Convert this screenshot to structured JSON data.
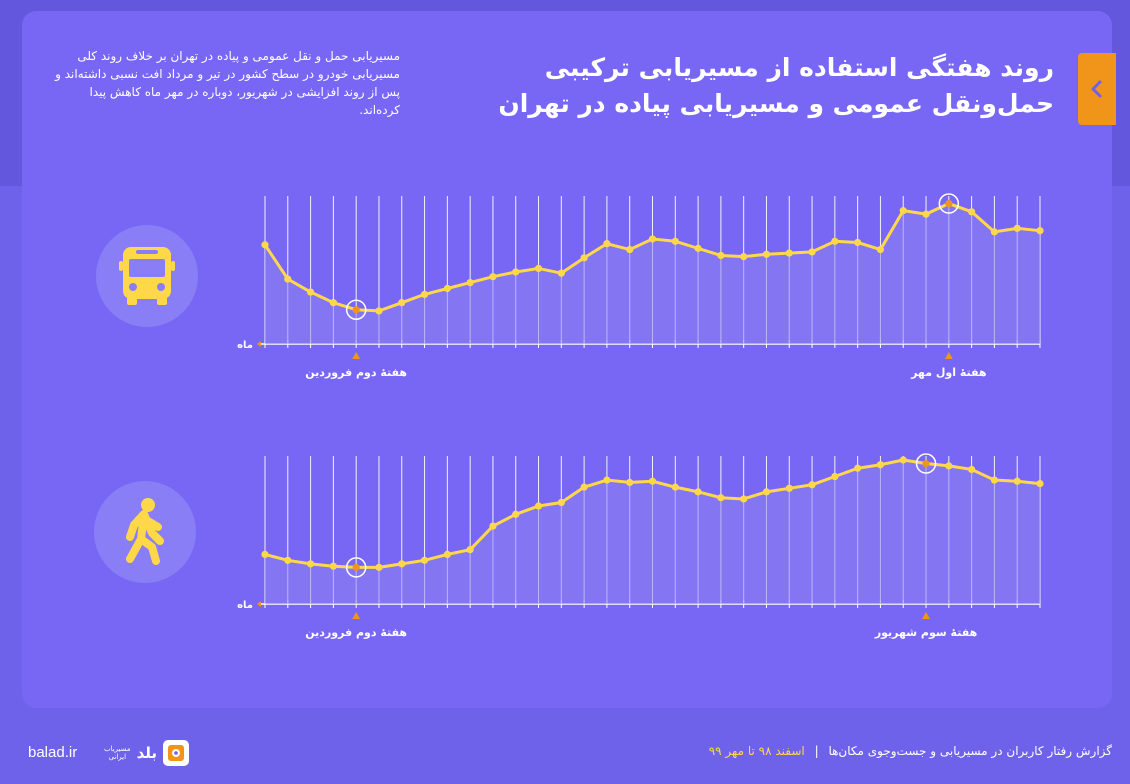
{
  "title": {
    "line1": "روند هفتگی استفاده از مسیریابی ترکیبی",
    "line2": "حمل‌ونقل عمومی و مسیریابی پیاده در تهران"
  },
  "description": "مسیریابی حمل و نقل عمومی و پیاده در تهران بر خلاف روند کلی مسیریابی خودرو در سطح کشور در تیر و مرداد افت نسبی داشته‌اند و پس از روند افزایشی در شهریور، دوباره در مهر ماه کاهش پیدا کرده‌اند.",
  "footer": {
    "report": "گزارش رفتار کاربران در مسیریابی و جست‌وجوی مکان‌ها",
    "separator": "|",
    "range": "اسفند ۹۸ تا مهر ۹۹",
    "brand_url": "balad.ir",
    "brand_word": "بلد",
    "brand_sub1": "مسیریاب",
    "brand_sub2": "ایرانی"
  },
  "icons": {
    "bus": "bus-icon",
    "walk": "pedestrian-icon",
    "back": "chevron-left-icon"
  },
  "colors": {
    "line": "#ffd84a",
    "highlight": "#f0941a",
    "grid": "#ffffff",
    "area": "#8f84f2"
  },
  "chart_data": [
    {
      "type": "area",
      "title": "حمل‌ونقل عمومی",
      "xlabel": "ماه",
      "ylabel": "",
      "x": [
        1,
        2,
        3,
        4,
        5,
        6,
        7,
        8,
        9,
        10,
        11,
        12,
        13,
        14,
        15,
        16,
        17,
        18,
        19,
        20,
        21,
        22,
        23,
        24,
        25,
        26,
        27,
        28,
        29,
        30,
        31,
        32,
        33,
        34,
        35
      ],
      "values": [
        62,
        33,
        22,
        13,
        7,
        6,
        13,
        20,
        25,
        30,
        35,
        39,
        42,
        38,
        51,
        63,
        58,
        67,
        65,
        59,
        53,
        52,
        54,
        55,
        56,
        65,
        64,
        58,
        91,
        88,
        97,
        90,
        73,
        76,
        74
      ],
      "ylim": [
        0,
        100
      ],
      "highlights": [
        {
          "x": 5,
          "label": "هفتهٔ دوم فروردین"
        },
        {
          "x": 31,
          "label": "هفتهٔ اول مهر"
        }
      ]
    },
    {
      "type": "area",
      "title": "پیاده",
      "xlabel": "ماه",
      "ylabel": "",
      "x": [
        1,
        2,
        3,
        4,
        5,
        6,
        7,
        8,
        9,
        10,
        11,
        12,
        13,
        14,
        15,
        16,
        17,
        18,
        19,
        20,
        21,
        22,
        23,
        24,
        25,
        26,
        27,
        28,
        29,
        30,
        31,
        32,
        33,
        34,
        35
      ],
      "values": [
        20,
        15,
        12,
        10,
        9,
        9,
        12,
        15,
        20,
        24,
        44,
        54,
        61,
        64,
        77,
        83,
        81,
        82,
        77,
        73,
        68,
        67,
        73,
        76,
        79,
        86,
        93,
        96,
        100,
        97,
        95,
        92,
        83,
        82,
        80
      ],
      "ylim": [
        0,
        100
      ],
      "highlights": [
        {
          "x": 5,
          "label": "هفتهٔ دوم فروردین"
        },
        {
          "x": 30,
          "label": "هفتهٔ سوم شهریور"
        }
      ]
    }
  ]
}
